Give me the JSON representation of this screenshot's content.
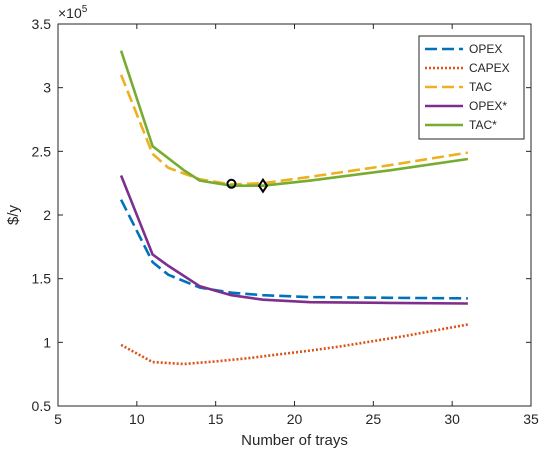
{
  "chart_data": {
    "type": "line",
    "xlabel": "Number of trays",
    "ylabel": "$/y",
    "scale_note": "×10",
    "scale_exponent": "5",
    "xlim": [
      5,
      35
    ],
    "ylim": [
      0.5,
      3.5
    ],
    "xticks": [
      5,
      10,
      15,
      20,
      25,
      30,
      35
    ],
    "yticks": [
      0.5,
      1,
      1.5,
      2,
      2.5,
      3,
      3.5
    ],
    "grid": false,
    "legend_position": "top-right",
    "series": [
      {
        "name": "OPEX",
        "color": "#0072BD",
        "style": "dashed",
        "x": [
          9,
          11,
          12,
          14,
          16,
          18,
          21,
          26,
          31
        ],
        "y": [
          2.12,
          1.63,
          1.53,
          1.43,
          1.39,
          1.37,
          1.355,
          1.35,
          1.345
        ]
      },
      {
        "name": "CAPEX",
        "color": "#D95319",
        "style": "dotted",
        "x": [
          9,
          11,
          13,
          15,
          17,
          19,
          21,
          23,
          25,
          27,
          29,
          31
        ],
        "y": [
          0.98,
          0.845,
          0.83,
          0.85,
          0.875,
          0.905,
          0.935,
          0.97,
          1.01,
          1.05,
          1.095,
          1.14
        ]
      },
      {
        "name": "TAC",
        "color": "#EDB120",
        "style": "dashed",
        "x": [
          9,
          11,
          12,
          14,
          16,
          18,
          21,
          26,
          31
        ],
        "y": [
          3.1,
          2.48,
          2.37,
          2.28,
          2.24,
          2.25,
          2.3,
          2.39,
          2.49
        ]
      },
      {
        "name": "OPEX*",
        "color": "#7E2F8E",
        "style": "solid",
        "x": [
          9,
          11,
          12,
          14,
          16,
          18,
          21,
          26,
          31
        ],
        "y": [
          2.31,
          1.69,
          1.6,
          1.44,
          1.37,
          1.335,
          1.315,
          1.31,
          1.305
        ]
      },
      {
        "name": "TAC*",
        "color": "#77AC30",
        "style": "solid",
        "x": [
          9,
          11,
          13,
          14,
          16,
          18,
          21,
          26,
          31
        ],
        "y": [
          3.29,
          2.54,
          2.35,
          2.27,
          2.23,
          2.23,
          2.27,
          2.35,
          2.44
        ]
      }
    ],
    "markers": [
      {
        "shape": "circle",
        "x": 16,
        "y": 2.245
      },
      {
        "shape": "diamond",
        "x": 18,
        "y": 2.23
      }
    ]
  }
}
